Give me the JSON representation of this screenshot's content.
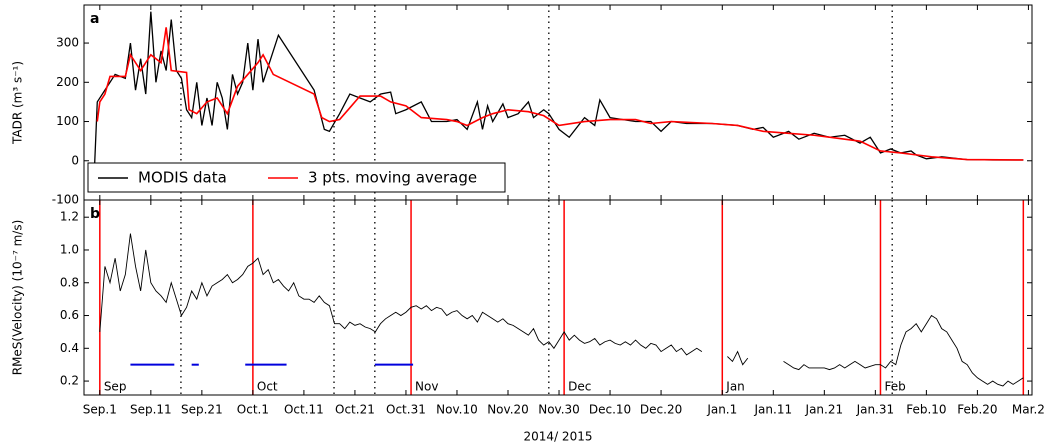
{
  "chart_data": [
    {
      "type": "line",
      "panel_label": "a",
      "y_label": "TADR (m³ s⁻¹)",
      "xlim": [
        -3.1,
        182.7
      ],
      "ylim": [
        -100,
        397
      ],
      "yticks": [
        -100,
        0,
        100,
        200,
        300
      ],
      "legend": "lower left",
      "event_x": [
        15.9,
        45.9,
        53.9,
        88,
        155.3
      ],
      "series": [
        {
          "name": "MODIS data",
          "color": "#000000",
          "x": [
            -1,
            -0.5,
            1,
            3,
            5,
            6,
            7,
            8,
            9,
            10,
            11,
            12,
            13,
            14,
            15,
            16,
            17,
            18,
            19,
            20,
            21,
            22,
            23,
            24,
            25,
            26,
            27,
            28,
            29,
            30,
            31,
            32,
            33,
            35,
            42,
            44,
            45,
            47,
            49,
            51,
            53,
            55,
            57,
            58,
            60,
            63,
            65,
            68,
            70,
            72,
            74,
            75,
            76,
            77,
            79,
            80,
            82,
            84,
            85,
            87,
            88,
            90,
            92,
            95,
            97,
            98,
            100,
            105,
            108,
            110,
            112,
            115,
            120,
            125,
            128,
            130,
            132,
            135,
            137,
            140,
            143,
            146,
            149,
            151,
            153,
            155,
            157,
            159,
            160,
            162,
            165,
            170,
            175,
            181
          ],
          "values": [
            -5,
            150,
            180,
            220,
            210,
            300,
            180,
            260,
            170,
            380,
            200,
            280,
            230,
            360,
            230,
            210,
            130,
            110,
            200,
            90,
            160,
            90,
            200,
            160,
            80,
            220,
            170,
            200,
            300,
            180,
            310,
            200,
            240,
            320,
            180,
            80,
            75,
            120,
            170,
            160,
            150,
            170,
            175,
            120,
            130,
            150,
            100,
            100,
            105,
            80,
            150,
            80,
            140,
            100,
            145,
            110,
            120,
            150,
            110,
            130,
            120,
            80,
            60,
            110,
            90,
            155,
            110,
            100,
            100,
            75,
            100,
            95,
            95,
            90,
            80,
            85,
            60,
            75,
            55,
            70,
            60,
            65,
            45,
            60,
            20,
            30,
            20,
            25,
            15,
            5,
            10,
            3,
            2,
            2
          ]
        },
        {
          "name": "3 pts. moving average",
          "color": "#ff0000",
          "x": [
            -0.5,
            0,
            1,
            2,
            5,
            6,
            8,
            10,
            12,
            13,
            14,
            17,
            17.5,
            19,
            21,
            23,
            25,
            27,
            29,
            31,
            32,
            34,
            42,
            43.5,
            45,
            47,
            49,
            51,
            55,
            57,
            60,
            63,
            68,
            70,
            72,
            75,
            77,
            80,
            84,
            87,
            90,
            95,
            100,
            105,
            108,
            112,
            120,
            125,
            130,
            135,
            140,
            143,
            149,
            153,
            157,
            160,
            163,
            170,
            181
          ],
          "values": [
            100,
            150,
            170,
            215,
            215,
            270,
            230,
            270,
            250,
            340,
            230,
            225,
            130,
            120,
            150,
            160,
            120,
            190,
            220,
            250,
            270,
            220,
            170,
            110,
            100,
            105,
            135,
            165,
            165,
            150,
            140,
            110,
            105,
            100,
            90,
            110,
            120,
            130,
            125,
            115,
            90,
            100,
            105,
            105,
            95,
            100,
            95,
            90,
            75,
            70,
            65,
            60,
            50,
            25,
            20,
            15,
            10,
            3,
            2
          ]
        }
      ]
    },
    {
      "type": "line",
      "panel_label": "b",
      "y_label": "RMeS(Velocity) (10⁻⁷ m/s)",
      "x_label": "2014/ 2015",
      "xlim": [
        -3.1,
        182.7
      ],
      "ylim": [
        0.115,
        1.305
      ],
      "yticks": [
        0.2,
        0.4,
        0.6,
        0.8,
        {
          "value": 1,
          "label": "1.0"
        },
        1.2
      ],
      "xticks": [
        {
          "value": 0,
          "label": "Sep.1"
        },
        {
          "value": 10,
          "label": "Sep.11"
        },
        {
          "value": 20,
          "label": "Sep.21"
        },
        {
          "value": 30,
          "label": "Oct.1"
        },
        {
          "value": 40,
          "label": "Oct.11"
        },
        {
          "value": 50,
          "label": "Oct.21"
        },
        {
          "value": 60,
          "label": "Oct.31"
        },
        {
          "value": 70,
          "label": "Nov.10"
        },
        {
          "value": 80,
          "label": "Nov.20"
        },
        {
          "value": 90,
          "label": "Nov.30"
        },
        {
          "value": 100,
          "label": "Dec.10"
        },
        {
          "value": 110,
          "label": "Dec.20"
        },
        {
          "value": 122,
          "label": "Jan.1"
        },
        {
          "value": 132,
          "label": "Jan.11"
        },
        {
          "value": 142,
          "label": "Jan.21"
        },
        {
          "value": 152,
          "label": "Jan.31"
        },
        {
          "value": 162,
          "label": "Feb.10"
        },
        {
          "value": 172,
          "label": "Feb.20"
        },
        {
          "value": 182,
          "label": "Mar.2"
        }
      ],
      "marker_x": [
        0,
        30,
        61,
        91,
        122,
        153,
        181
      ],
      "marker_labels": [
        "Sep",
        "Oct",
        "Nov",
        "Dec",
        "Jan",
        "Feb",
        null
      ],
      "marker_color": "#ff0000",
      "segments": [
        [
          6,
          14.6
        ],
        [
          18,
          19.4
        ],
        [
          28.5,
          36.6
        ],
        [
          53.9,
          61.4
        ]
      ],
      "segment_value": 0.3,
      "segment_color": "#0000dd",
      "series": [
        {
          "color": "#000000",
          "x": [
            0,
            1,
            2,
            3,
            4,
            5,
            6,
            7,
            8,
            9,
            10,
            11,
            12,
            13,
            14,
            15,
            16,
            17,
            18,
            19,
            20,
            21,
            22,
            23,
            24,
            25,
            26,
            27,
            28,
            29,
            30,
            31,
            32,
            33,
            34,
            35,
            36,
            37,
            38,
            39,
            40,
            41,
            42,
            43,
            44,
            45,
            46,
            47,
            48,
            49,
            50,
            51,
            52,
            53,
            54,
            55,
            56,
            57,
            58,
            59,
            60,
            61,
            62,
            63,
            64,
            65,
            66,
            67,
            68,
            69,
            70,
            71,
            72,
            73,
            74,
            75,
            76,
            77,
            78,
            79,
            80,
            81,
            82,
            83,
            84,
            85,
            86,
            87,
            88,
            89,
            90,
            91,
            92,
            93,
            94,
            95,
            96,
            97,
            98,
            99,
            100,
            101,
            102,
            103,
            104,
            105,
            106,
            107,
            108,
            109,
            110,
            111,
            112,
            113,
            114,
            115,
            116,
            117,
            118,
            119,
            120,
            121,
            122,
            123,
            124,
            125,
            126,
            127,
            128,
            129,
            130,
            131,
            132,
            133,
            134,
            135,
            136,
            137,
            138,
            139,
            140,
            141,
            142,
            143,
            144,
            145,
            146,
            147,
            148,
            149,
            150,
            151,
            152,
            153,
            154,
            155,
            156,
            157,
            158,
            159,
            160,
            161,
            162,
            163,
            164,
            165,
            166,
            167,
            168,
            169,
            170,
            171,
            172,
            173,
            174,
            175,
            176,
            177,
            178,
            179,
            180,
            181
          ],
          "values": [
            0.5,
            0.9,
            0.8,
            0.95,
            0.75,
            0.85,
            1.1,
            0.9,
            0.75,
            1.0,
            0.8,
            0.75,
            0.72,
            0.68,
            0.8,
            0.7,
            0.6,
            0.65,
            0.75,
            0.7,
            0.8,
            0.72,
            0.78,
            0.8,
            0.82,
            0.85,
            0.8,
            0.82,
            0.85,
            0.9,
            0.92,
            0.95,
            0.85,
            0.88,
            0.8,
            0.82,
            0.78,
            0.75,
            0.8,
            0.72,
            0.7,
            0.7,
            0.68,
            0.72,
            0.68,
            0.66,
            0.55,
            0.55,
            0.52,
            0.56,
            0.54,
            0.55,
            0.53,
            0.52,
            0.5,
            0.55,
            0.58,
            0.6,
            0.62,
            0.6,
            0.62,
            0.65,
            0.66,
            0.64,
            0.66,
            0.63,
            0.65,
            0.64,
            0.6,
            0.62,
            0.63,
            0.6,
            0.58,
            0.6,
            0.56,
            0.62,
            0.6,
            0.58,
            0.56,
            0.58,
            0.55,
            0.54,
            0.52,
            0.5,
            0.48,
            0.52,
            0.45,
            0.42,
            0.44,
            0.4,
            0.45,
            0.5,
            0.45,
            0.48,
            0.45,
            0.43,
            0.44,
            0.46,
            0.42,
            0.44,
            0.45,
            0.43,
            0.42,
            0.44,
            0.42,
            0.45,
            0.42,
            0.4,
            0.43,
            0.42,
            0.38,
            0.4,
            0.42,
            0.38,
            0.4,
            0.36,
            0.38,
            0.4,
            0.38,
            null,
            null,
            null,
            null,
            0.35,
            0.32,
            0.38,
            0.3,
            0.34,
            null,
            null,
            null,
            null,
            null,
            null,
            0.32,
            0.3,
            0.28,
            0.27,
            0.3,
            0.28,
            0.28,
            0.28,
            0.28,
            0.27,
            0.28,
            0.3,
            0.28,
            0.3,
            0.32,
            0.3,
            0.28,
            0.29,
            0.3,
            0.3,
            0.28,
            0.32,
            0.3,
            0.42,
            0.5,
            0.52,
            0.55,
            0.5,
            0.55,
            0.6,
            0.58,
            0.52,
            0.5,
            0.45,
            0.4,
            0.32,
            0.3,
            0.25,
            0.22,
            0.2,
            0.18,
            0.2,
            0.18,
            0.17,
            0.2,
            0.18,
            0.2,
            0.22
          ]
        }
      ]
    }
  ]
}
